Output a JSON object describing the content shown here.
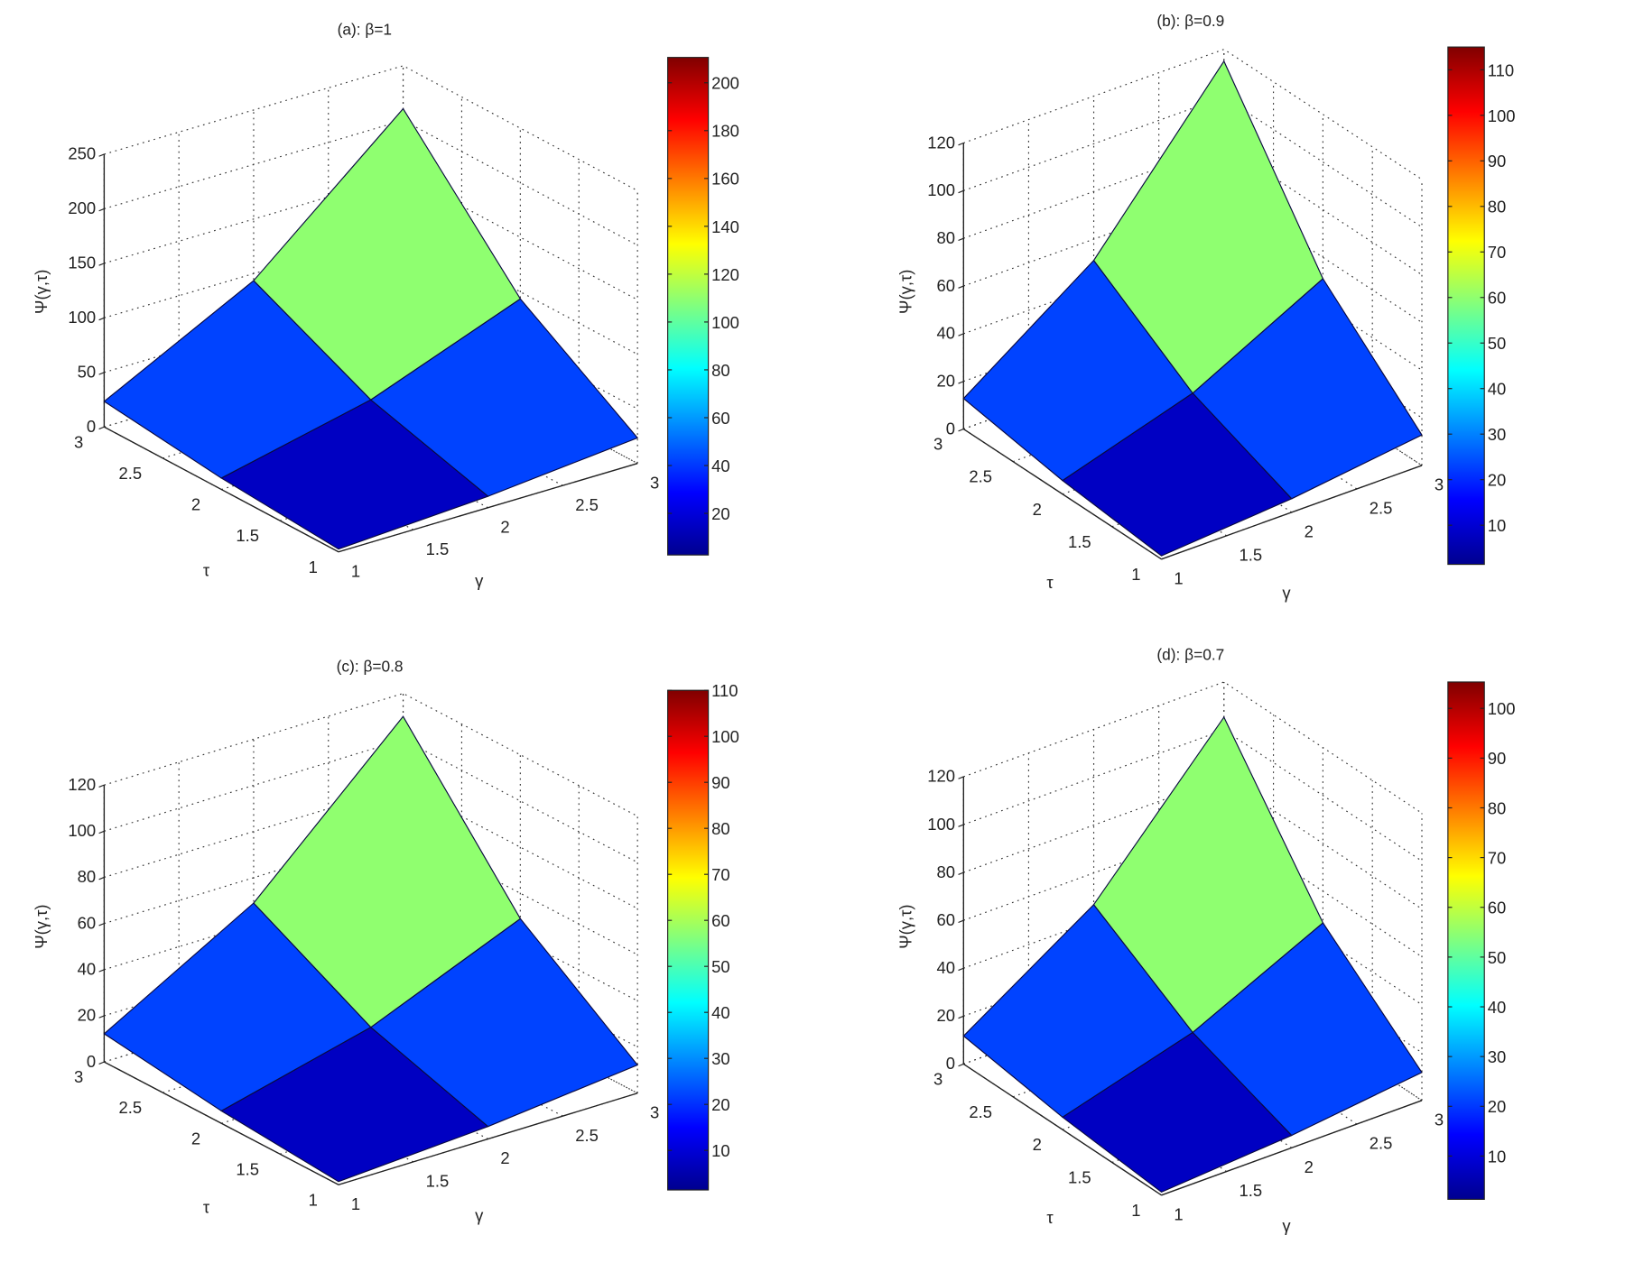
{
  "chart_data": [
    {
      "type": "surface",
      "title": "(a): β=1",
      "xlabel": "γ",
      "ylabel": "τ",
      "zlabel": "Ψ(γ,τ)",
      "gamma": [
        1,
        2,
        3
      ],
      "tau": [
        1,
        2,
        3
      ],
      "z": [
        [
          2.6,
          10.4,
          23.4
        ],
        [
          10.4,
          41.6,
          93.6
        ],
        [
          23.4,
          93.6,
          210.6
        ]
      ],
      "zlim": [
        0,
        250
      ],
      "zticks": [
        "0",
        "50",
        "100",
        "150",
        "200",
        "250"
      ],
      "xticks": [
        "1",
        "1.5",
        "2",
        "2.5",
        "3"
      ],
      "yticks": [
        "1",
        "1.5",
        "2",
        "2.5",
        "3"
      ],
      "colorbar": {
        "range": [
          2.6,
          210.6
        ],
        "ticks": [
          "20",
          "40",
          "60",
          "80",
          "100",
          "120",
          "140",
          "160",
          "180",
          "200"
        ]
      },
      "grid": true
    },
    {
      "type": "surface",
      "title": "(b): β=0.9",
      "xlabel": "γ",
      "ylabel": "τ",
      "zlabel": "Ψ(γ,τ)",
      "gamma": [
        1,
        2,
        3
      ],
      "tau": [
        1,
        2,
        3
      ],
      "z": [
        [
          1.4,
          5.7,
          12.8
        ],
        [
          5.7,
          22.7,
          51.1
        ],
        [
          12.8,
          51.1,
          115
        ]
      ],
      "zlim": [
        0,
        120
      ],
      "zticks": [
        "0",
        "20",
        "40",
        "60",
        "80",
        "100",
        "120"
      ],
      "xticks": [
        "1",
        "1.5",
        "2",
        "2.5",
        "3"
      ],
      "yticks": [
        "1",
        "1.5",
        "2",
        "2.5",
        "3"
      ],
      "colorbar": {
        "range": [
          1.4,
          115
        ],
        "ticks": [
          "10",
          "20",
          "30",
          "40",
          "50",
          "60",
          "70",
          "80",
          "90",
          "100",
          "110"
        ]
      },
      "grid": true
    },
    {
      "type": "surface",
      "title": "(c): β=0.8",
      "xlabel": "γ",
      "ylabel": "τ",
      "zlabel": "Ψ(γ,τ)",
      "gamma": [
        1,
        2,
        3
      ],
      "tau": [
        1,
        2,
        3
      ],
      "z": [
        [
          1.4,
          5.4,
          12.2
        ],
        [
          5.4,
          21.8,
          49
        ],
        [
          12.2,
          49,
          110
        ]
      ],
      "zlim": [
        0,
        120
      ],
      "zticks": [
        "0",
        "20",
        "40",
        "60",
        "80",
        "100",
        "120"
      ],
      "xticks": [
        "1",
        "1.5",
        "2",
        "2.5",
        "3"
      ],
      "yticks": [
        "1",
        "1.5",
        "2",
        "2.5",
        "3"
      ],
      "colorbar": {
        "range": [
          1.4,
          110
        ],
        "ticks": [
          "10",
          "20",
          "30",
          "40",
          "50",
          "60",
          "70",
          "80",
          "90",
          "100",
          "110"
        ]
      },
      "grid": true
    },
    {
      "type": "surface",
      "title": "(d): β=0.7",
      "xlabel": "γ",
      "ylabel": "τ",
      "zlabel": "Ψ(γ,τ)",
      "gamma": [
        1,
        2,
        3
      ],
      "tau": [
        1,
        2,
        3
      ],
      "z": [
        [
          1.3,
          5.2,
          11.7
        ],
        [
          5.2,
          20.8,
          46.8
        ],
        [
          11.7,
          46.8,
          105.3
        ]
      ],
      "zlim": [
        0,
        120
      ],
      "zticks": [
        "0",
        "20",
        "40",
        "60",
        "80",
        "100",
        "120"
      ],
      "xticks": [
        "1",
        "1.5",
        "2",
        "2.5",
        "3"
      ],
      "yticks": [
        "1",
        "1.5",
        "2",
        "2.5",
        "3"
      ],
      "colorbar": {
        "range": [
          1.3,
          105.3
        ],
        "ticks": [
          "10",
          "20",
          "30",
          "40",
          "50",
          "60",
          "70",
          "80",
          "90",
          "100"
        ]
      },
      "grid": true
    }
  ]
}
